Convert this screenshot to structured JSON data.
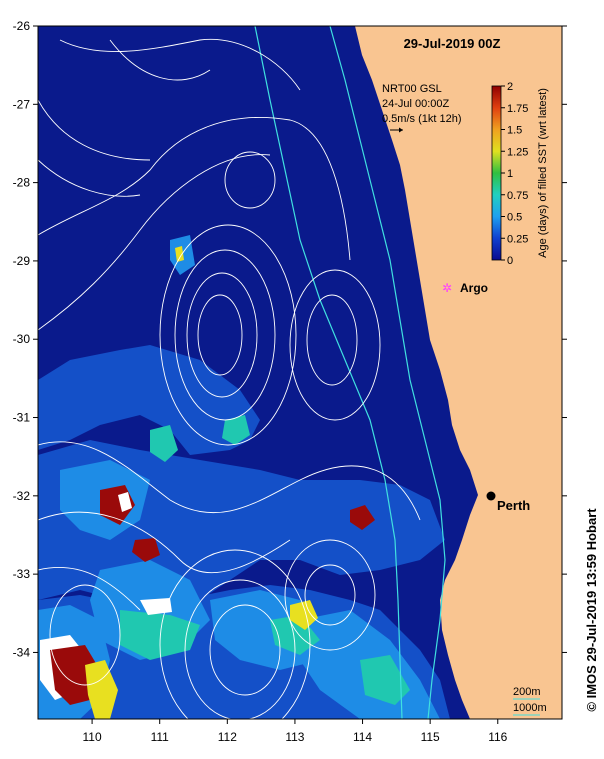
{
  "map": {
    "title": "29-Jul-2019 00Z",
    "lon_range": [
      109.2,
      116.95
    ],
    "lat_range": [
      -34.85,
      -26.0
    ],
    "lon_ticks": [
      "110",
      "111",
      "112",
      "113",
      "114",
      "115",
      "116"
    ],
    "lat_ticks": [
      "-26",
      "-27",
      "-28",
      "-29",
      "-30",
      "-31",
      "-32",
      "-33",
      "-34"
    ],
    "colors": {
      "ocean_base": "#0a1a8c",
      "ocean_mid": "#1450c8",
      "ocean_light": "#1e8ce6",
      "land": "#f9c591",
      "contour": "#ffffff",
      "isobath": "#40e0e0"
    }
  },
  "legend": {
    "product_line1": "NRT00 GSL",
    "product_line2": "24-Jul 00:00Z",
    "vector_scale": "0.5m/s (1kt 12h)"
  },
  "colorbar": {
    "title": "Age (days) of filled SST (wrt latest)",
    "tick_labels": [
      "2",
      "1.75",
      "1.5",
      "1.25",
      "1",
      "0.75",
      "0.5",
      "0.25",
      "0"
    ],
    "range": [
      0,
      2
    ],
    "stops": [
      "#0a0a90",
      "#1040d0",
      "#1ea0f0",
      "#20d0c0",
      "#30c040",
      "#e0e020",
      "#f0a020",
      "#e04010",
      "#900000"
    ]
  },
  "places": [
    {
      "name": "Argo",
      "lon": 115.25,
      "lat": -29.35,
      "marker_color": "#ff40ff"
    },
    {
      "name": "Perth",
      "lon": 115.85,
      "lat": -31.95,
      "marker_color": "#000000"
    }
  ],
  "isobath_labels": {
    "deep": "200m",
    "deeper": "1000m"
  },
  "credit": "© IMOS 29-Jul-2019 13:59 Hobart"
}
